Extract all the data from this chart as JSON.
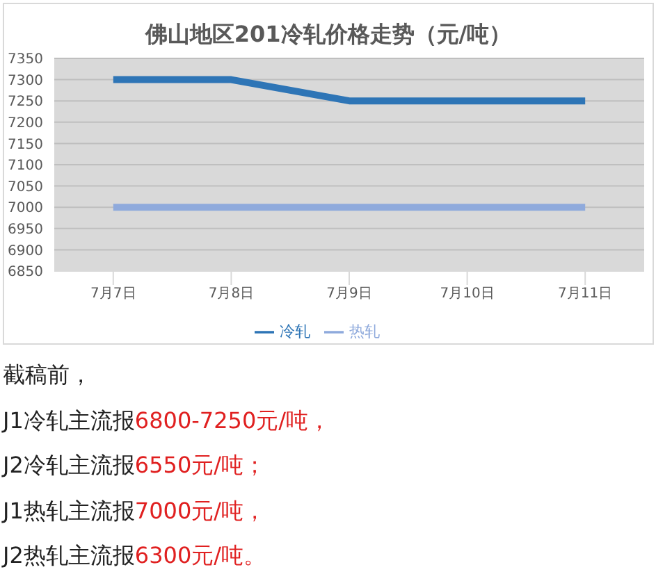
{
  "chart_data": {
    "type": "line",
    "title": "佛山地区201冷轧价格走势（元/吨）",
    "categories": [
      "7月7日",
      "7月8日",
      "7月9日",
      "7月10日",
      "7月11日"
    ],
    "series": [
      {
        "name": "冷轧",
        "color": "#2e75b6",
        "values": [
          7300,
          7300,
          7250,
          7250,
          7250
        ]
      },
      {
        "name": "热轧",
        "color": "#8faadc",
        "values": [
          7000,
          7000,
          7000,
          7000,
          7000
        ]
      }
    ],
    "ylim": [
      6850,
      7350
    ],
    "yticks": [
      6850,
      6900,
      6950,
      7000,
      7050,
      7100,
      7150,
      7200,
      7250,
      7300,
      7350
    ],
    "grid": "y",
    "legend": "bottom",
    "marker": "none",
    "line_style": "solid",
    "annotations": [
      "截稿前，",
      "J1冷轧主流报6800-7250元/吨，",
      "J2冷轧主流报6550元/吨；",
      "J1热轧主流报7000元/吨，",
      "J2热轧主流报6300元/吨。"
    ]
  }
}
